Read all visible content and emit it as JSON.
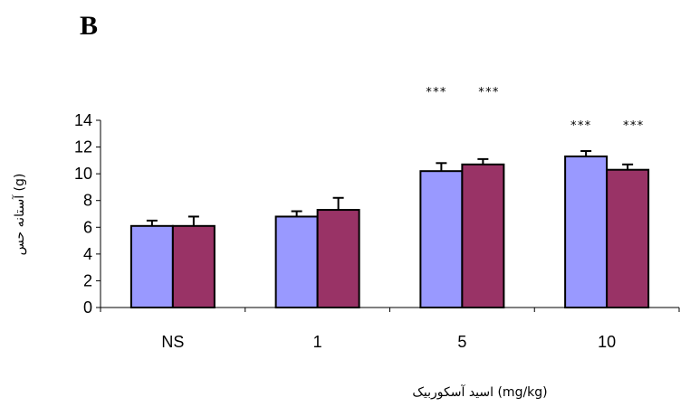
{
  "panel_label": "B",
  "chart_data": {
    "type": "bar",
    "categories": [
      "NS",
      "1",
      "5",
      "10"
    ],
    "series": [
      {
        "values": [
          6.1,
          6.8,
          10.2,
          11.3
        ],
        "errors": [
          0.4,
          0.4,
          0.6,
          0.4
        ],
        "color": "#9999ff"
      },
      {
        "values": [
          6.1,
          7.3,
          10.7,
          10.3
        ],
        "errors": [
          0.7,
          0.9,
          0.4,
          0.4
        ],
        "color": "#993366"
      }
    ],
    "significance": [
      [
        "",
        ""
      ],
      [
        "",
        ""
      ],
      [
        "***",
        "***"
      ],
      [
        "***",
        "***"
      ]
    ],
    "xlabel": "اسید آسکوربیک (mg/kg)",
    "ylabel": "آستانه حس (g)",
    "ylim": [
      0,
      14
    ],
    "yticks": [
      0,
      2,
      4,
      6,
      8,
      10,
      12,
      14
    ],
    "grid": false,
    "legend": "none"
  }
}
